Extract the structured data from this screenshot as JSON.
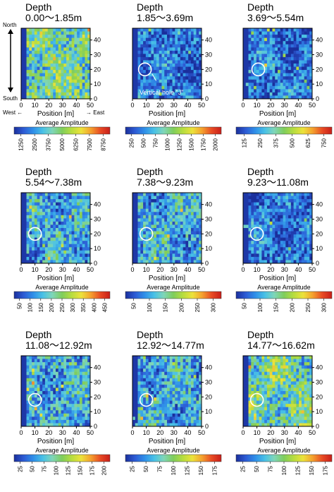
{
  "chart_data": {
    "type": "heatmap",
    "figure_notes": {
      "north_label": "North",
      "south_label": "South",
      "west_label": "West ←",
      "east_label": "→ East",
      "hole_label": "Vertical hole \"J\""
    },
    "panels": [
      {
        "depth_label": "Depth",
        "depth_range": "0.00～1.85m",
        "xlabel": "Position [m]",
        "x_ticks": [
          "0",
          "10",
          "20",
          "30",
          "40",
          "50"
        ],
        "y_ticks": [
          "0",
          "10",
          "20",
          "30",
          "40"
        ],
        "colorbar_title": "Average Amplitude",
        "colorbar_ticks": [
          "1250",
          "2500",
          "3750",
          "5000",
          "6250",
          "7500",
          "8750"
        ],
        "circle": null,
        "palette": "bright"
      },
      {
        "depth_label": "Depth",
        "depth_range": "1.85～3.69m",
        "xlabel": "Position [m]",
        "x_ticks": [
          "0",
          "10",
          "20",
          "30",
          "40",
          "50"
        ],
        "y_ticks": [
          "0",
          "10",
          "20",
          "30",
          "40"
        ],
        "colorbar_title": "Average Amplitude",
        "colorbar_ticks": [
          "250",
          "500",
          "750",
          "1000",
          "1250",
          "1500",
          "1750",
          "2000"
        ],
        "circle": {
          "x": 9,
          "y": 20
        },
        "palette": "dark"
      },
      {
        "depth_label": "Depth",
        "depth_range": "3.69～5.54m",
        "xlabel": "Position [m]",
        "x_ticks": [
          "0",
          "10",
          "20",
          "30",
          "40",
          "50"
        ],
        "y_ticks": [
          "0",
          "10",
          "20",
          "30",
          "40"
        ],
        "colorbar_title": "Average Amplitude",
        "colorbar_ticks": [
          "125",
          "250",
          "375",
          "500",
          "625",
          "750"
        ],
        "circle": {
          "x": 11,
          "y": 20
        },
        "palette": "dark"
      },
      {
        "depth_label": "Depth",
        "depth_range": "5.54～7.38m",
        "xlabel": "Position [m]",
        "x_ticks": [
          "0",
          "10",
          "20",
          "30",
          "40",
          "50"
        ],
        "y_ticks": [
          "0",
          "10",
          "20",
          "30",
          "40"
        ],
        "colorbar_title": "Average Amplitude",
        "colorbar_ticks": [
          "50",
          "100",
          "150",
          "200",
          "250",
          "300",
          "350",
          "400",
          "450"
        ],
        "circle": {
          "x": 10,
          "y": 20
        },
        "palette": "mid"
      },
      {
        "depth_label": "Depth",
        "depth_range": "7.38～9.23m",
        "xlabel": "Position [m]",
        "x_ticks": [
          "0",
          "10",
          "20",
          "30",
          "40",
          "50"
        ],
        "y_ticks": [
          "0",
          "10",
          "20",
          "30",
          "40"
        ],
        "colorbar_title": "Average Amplitude",
        "colorbar_ticks": [
          "50",
          "100",
          "150",
          "200",
          "250",
          "300"
        ],
        "circle": {
          "x": 10,
          "y": 20
        },
        "palette": "mid"
      },
      {
        "depth_label": "Depth",
        "depth_range": "9.23～11.08m",
        "xlabel": "Position [m]",
        "x_ticks": [
          "0",
          "10",
          "20",
          "30",
          "40",
          "50"
        ],
        "y_ticks": [
          "0",
          "10",
          "20",
          "30",
          "40"
        ],
        "colorbar_title": "Average Amplitude",
        "colorbar_ticks": [
          "50",
          "100",
          "150",
          "200",
          "250",
          "300"
        ],
        "circle": {
          "x": 10,
          "y": 20
        },
        "palette": "dark"
      },
      {
        "depth_label": "Depth",
        "depth_range": "11.08～12.92m",
        "xlabel": "Position [m]",
        "x_ticks": [
          "0",
          "10",
          "20",
          "30",
          "40",
          "50"
        ],
        "y_ticks": [
          "0",
          "10",
          "20",
          "30",
          "40"
        ],
        "colorbar_title": "Average Amplitude",
        "colorbar_ticks": [
          "25",
          "50",
          "75",
          "100",
          "125",
          "150",
          "175",
          "200"
        ],
        "circle": {
          "x": 10,
          "y": 18
        },
        "palette": "mid"
      },
      {
        "depth_label": "Depth",
        "depth_range": "12.92～14.77m",
        "xlabel": "Position [m]",
        "x_ticks": [
          "0",
          "10",
          "20",
          "30",
          "40",
          "50"
        ],
        "y_ticks": [
          "0",
          "10",
          "20",
          "30",
          "40"
        ],
        "colorbar_title": "Average Amplitude",
        "colorbar_ticks": [
          "25",
          "50",
          "75",
          "100",
          "125",
          "150",
          "175"
        ],
        "circle": {
          "x": 10,
          "y": 18
        },
        "palette": "mid"
      },
      {
        "depth_label": "Depth",
        "depth_range": "14.77～16.62m",
        "xlabel": "Position [m]",
        "x_ticks": [
          "0",
          "10",
          "20",
          "30",
          "40",
          "50"
        ],
        "y_ticks": [
          "0",
          "10",
          "20",
          "30",
          "40"
        ],
        "colorbar_title": "Average Amplitude",
        "colorbar_ticks": [
          "25",
          "50",
          "75",
          "100",
          "125",
          "150",
          "175"
        ],
        "circle": {
          "x": 10,
          "y": 18
        },
        "palette": "bright"
      }
    ]
  }
}
